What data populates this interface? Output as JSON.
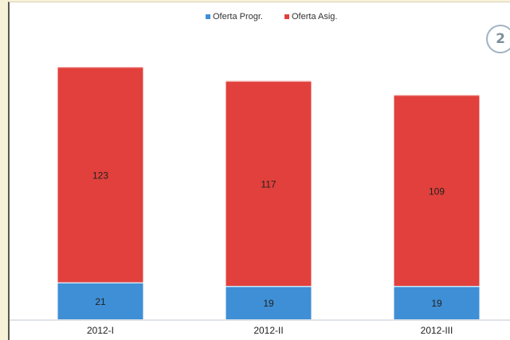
{
  "badge": {
    "number": "2"
  },
  "colors": {
    "series_blue": "#3f8fd6",
    "series_red": "#e1403c",
    "page_background": "#f7f1d8"
  },
  "chart_data": {
    "type": "bar",
    "stacked": true,
    "categories": [
      "2012-I",
      "2012-II",
      "2012-III"
    ],
    "series": [
      {
        "name": "Oferta Progr.",
        "values": [
          21,
          19,
          19
        ],
        "color": "#3f8fd6"
      },
      {
        "name": "Oferta Asig.",
        "values": [
          123,
          117,
          109
        ],
        "color": "#e1403c"
      }
    ],
    "title": "",
    "xlabel": "",
    "ylabel": "",
    "ylim": [
      0,
      160
    ],
    "grid": false,
    "legend_position": "top-center",
    "data_labels": true
  }
}
